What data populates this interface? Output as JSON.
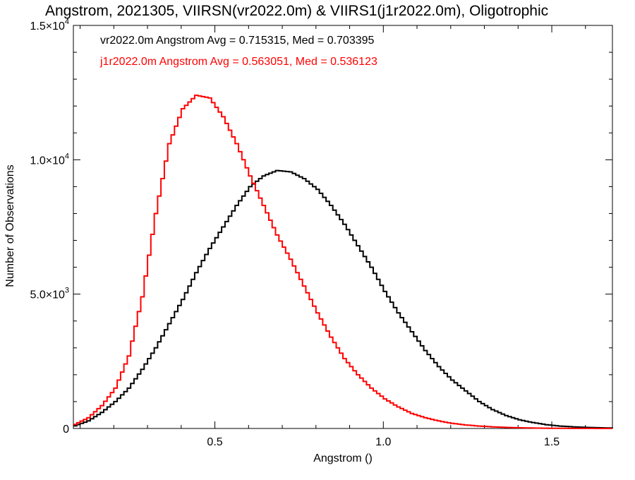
{
  "chart_data": {
    "type": "line",
    "title": "Angstrom, 2021305, VIIRSN(vr2022.0m) & VIIRS1(j1r2022.0m), Oligotrophic",
    "xlabel": "Angstrom ()",
    "ylabel": "Number of Observations",
    "xlim": [
      0.08,
      1.68
    ],
    "ylim": [
      0,
      15000
    ],
    "x_ticks": [
      {
        "value": 0.5,
        "label": "0.5"
      },
      {
        "value": 1.0,
        "label": "1.0"
      },
      {
        "value": 1.5,
        "label": "1.5"
      }
    ],
    "y_ticks": [
      {
        "value": 0,
        "mantissa": "0",
        "exponent": ""
      },
      {
        "value": 5000,
        "mantissa": "5.0×10",
        "exponent": "3"
      },
      {
        "value": 10000,
        "mantissa": "1.0×10",
        "exponent": "4"
      },
      {
        "value": 15000,
        "mantissa": "1.5×10",
        "exponent": "4"
      }
    ],
    "grid": false,
    "legend_position": "top-left",
    "annotations": [
      {
        "text": "vr2022.0m Angstrom Avg = 0.715315, Med = 0.703395",
        "color": "#000000"
      },
      {
        "text": "j1r2022.0m Angstrom Avg = 0.563051, Med = 0.536123",
        "color": "#ff0000"
      }
    ],
    "x": [
      0.08,
      0.12,
      0.16,
      0.2,
      0.24,
      0.28,
      0.32,
      0.36,
      0.4,
      0.44,
      0.48,
      0.52,
      0.56,
      0.6,
      0.64,
      0.68,
      0.72,
      0.76,
      0.8,
      0.84,
      0.88,
      0.92,
      0.96,
      1.0,
      1.04,
      1.08,
      1.12,
      1.16,
      1.2,
      1.24,
      1.28,
      1.32,
      1.36,
      1.4,
      1.44,
      1.48,
      1.52,
      1.56,
      1.6,
      1.64,
      1.68
    ],
    "series": [
      {
        "color": "#000000",
        "values": [
          100,
          280,
          600,
          1000,
          1500,
          2200,
          3000,
          3900,
          4800,
          5800,
          6700,
          7500,
          8300,
          9000,
          9400,
          9600,
          9550,
          9300,
          8900,
          8300,
          7600,
          6800,
          6000,
          5100,
          4300,
          3600,
          2900,
          2300,
          1800,
          1400,
          1000,
          700,
          480,
          320,
          220,
          140,
          90,
          60,
          40,
          25,
          15
        ]
      },
      {
        "color": "#ff0000",
        "values": [
          150,
          400,
          850,
          1500,
          2700,
          4900,
          8000,
          10600,
          11900,
          12400,
          12300,
          11600,
          10600,
          9400,
          8300,
          7200,
          6300,
          5300,
          4300,
          3400,
          2600,
          2000,
          1500,
          1100,
          800,
          560,
          400,
          280,
          190,
          130,
          90,
          60,
          40,
          25,
          15,
          10,
          5,
          3,
          2,
          1,
          0
        ]
      }
    ]
  }
}
